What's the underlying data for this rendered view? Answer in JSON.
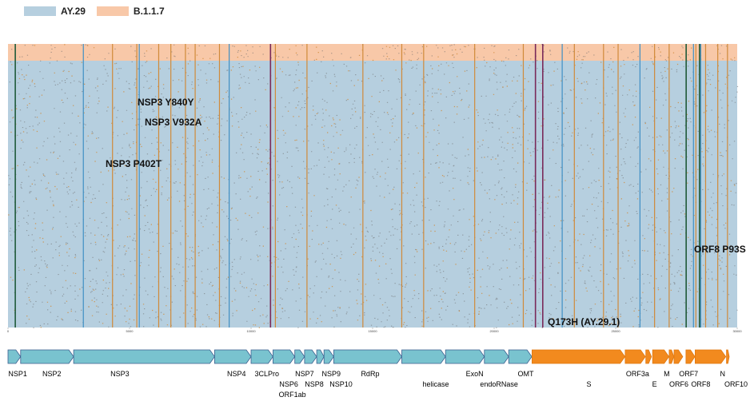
{
  "legend": [
    {
      "label": "AY.29",
      "color": "#b6cfdf"
    },
    {
      "label": "B.1.1.7",
      "color": "#f8c8a8"
    }
  ],
  "colors": {
    "ay29_bg": "#b6cfdf",
    "b117_bg": "#f8c8a8",
    "orange_line": "#d08a3a",
    "blue_line": "#3f8fc4",
    "dark_green": "#1f5a3a",
    "purple": "#7a2a5a",
    "orf1ab_fill": "#79c3cf",
    "orf_fill": "#f28a1e"
  },
  "annotations": {
    "nsp3_y840y": "NSP3 Y840Y",
    "nsp3_v932a": "NSP3 V932A",
    "nsp3_p402t": "NSP3 P402T",
    "orf8_p93s": "ORF8 P93S",
    "q173h": "Q173H (AY.29.1)"
  },
  "axis": {
    "ticks": [
      "0",
      "5000",
      "10000",
      "15000",
      "20000",
      "25000",
      "30000"
    ],
    "tick_values": [
      0,
      5000,
      10000,
      15000,
      20000,
      25000,
      30000
    ],
    "genome_length": 30000
  },
  "variant_sites": {
    "orange": [
      4300,
      5300,
      6200,
      6700,
      7300,
      7700,
      8700,
      11000,
      12300,
      14600,
      16200,
      17100,
      19200,
      21200,
      22000,
      23300,
      24500,
      25100,
      26600,
      27200,
      27900,
      28300,
      28700,
      29200,
      29600
    ],
    "blue": [
      3100,
      5400,
      9100,
      22800,
      26000,
      28200,
      28500
    ],
    "dark_green": [
      300,
      27900,
      28450
    ],
    "purple": [
      10800,
      21700,
      22000
    ]
  },
  "gene_labels": [
    {
      "text": "NSP1",
      "pos": 400,
      "row": 0
    },
    {
      "text": "NSP2",
      "pos": 1800,
      "row": 0
    },
    {
      "text": "NSP3",
      "pos": 4600,
      "row": 0
    },
    {
      "text": "NSP4",
      "pos": 9400,
      "row": 0
    },
    {
      "text": "3CLPro",
      "pos": 10650,
      "row": 0
    },
    {
      "text": "NSP6",
      "pos": 11550,
      "row": 1
    },
    {
      "text": "ORF1ab",
      "pos": 11700,
      "row": 2
    },
    {
      "text": "NSP7",
      "pos": 12200,
      "row": 0
    },
    {
      "text": "NSP8",
      "pos": 12600,
      "row": 1
    },
    {
      "text": "NSP9",
      "pos": 13300,
      "row": 0
    },
    {
      "text": "NSP10",
      "pos": 13700,
      "row": 1
    },
    {
      "text": "RdRp",
      "pos": 14900,
      "row": 0
    },
    {
      "text": "helicase",
      "pos": 17600,
      "row": 1
    },
    {
      "text": "ExoN",
      "pos": 19200,
      "row": 0
    },
    {
      "text": "endoRNase",
      "pos": 20200,
      "row": 1
    },
    {
      "text": "OMT",
      "pos": 21300,
      "row": 0
    },
    {
      "text": "S",
      "pos": 23900,
      "row": 1
    },
    {
      "text": "ORF3a",
      "pos": 25900,
      "row": 0
    },
    {
      "text": "E",
      "pos": 26600,
      "row": 1
    },
    {
      "text": "M",
      "pos": 27100,
      "row": 0
    },
    {
      "text": "ORF6",
      "pos": 27600,
      "row": 1
    },
    {
      "text": "ORF7",
      "pos": 28000,
      "row": 0
    },
    {
      "text": "ORF8",
      "pos": 28500,
      "row": 1
    },
    {
      "text": "N",
      "pos": 29400,
      "row": 0
    },
    {
      "text": "ORF10",
      "pos": 29950,
      "row": 1
    }
  ],
  "genes_orf1ab": [
    {
      "start": 0,
      "end": 520
    },
    {
      "start": 520,
      "end": 2700
    },
    {
      "start": 2700,
      "end": 8500
    },
    {
      "start": 8500,
      "end": 10000
    },
    {
      "start": 10000,
      "end": 10900
    },
    {
      "start": 10900,
      "end": 11800
    },
    {
      "start": 11800,
      "end": 12200
    },
    {
      "start": 12200,
      "end": 12700
    },
    {
      "start": 12700,
      "end": 13000
    },
    {
      "start": 13000,
      "end": 13400
    },
    {
      "start": 13400,
      "end": 16200
    },
    {
      "start": 16200,
      "end": 18000
    },
    {
      "start": 18000,
      "end": 19600
    },
    {
      "start": 19600,
      "end": 20600
    },
    {
      "start": 20600,
      "end": 21550
    }
  ],
  "genes_orf": [
    {
      "start": 21560,
      "end": 25380
    },
    {
      "start": 25390,
      "end": 26220
    },
    {
      "start": 26240,
      "end": 26470
    },
    {
      "start": 26520,
      "end": 27190
    },
    {
      "start": 27200,
      "end": 27390
    },
    {
      "start": 27400,
      "end": 27760
    },
    {
      "start": 27890,
      "end": 28260
    },
    {
      "start": 28270,
      "end": 29530
    },
    {
      "start": 29560,
      "end": 29670
    }
  ]
}
